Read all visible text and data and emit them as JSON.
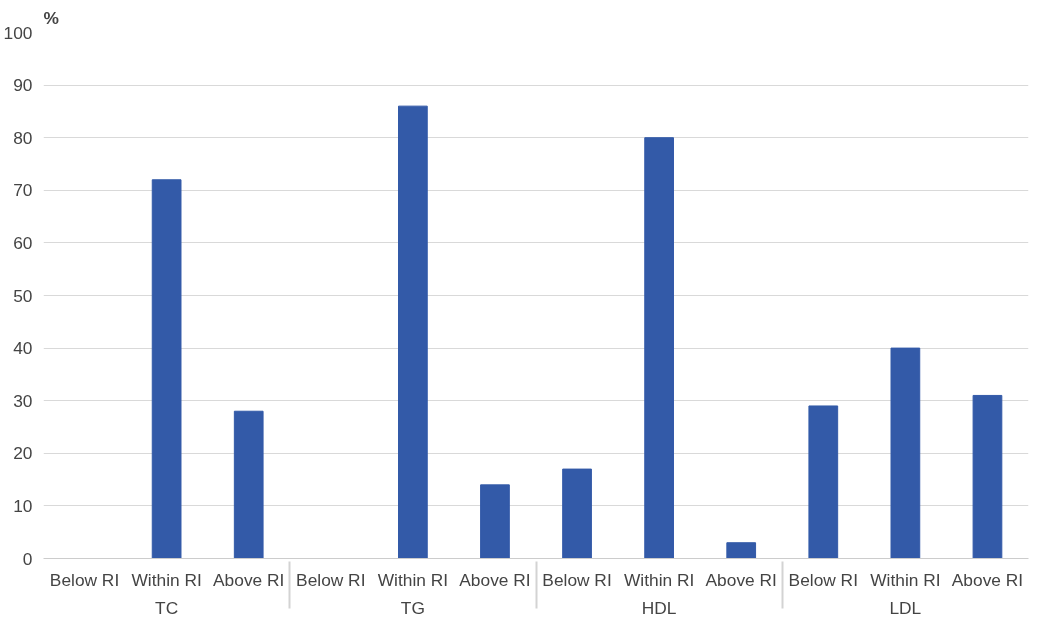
{
  "chart_data": {
    "type": "bar",
    "ylabel": "%",
    "categories": [
      "Below RI",
      "Within RI",
      "Above RI",
      "Below RI",
      "Within RI",
      "Above RI",
      "Below RI",
      "Within RI",
      "Above RI",
      "Below RI",
      "Within RI",
      "Above RI"
    ],
    "annotations": [
      "TC",
      "TG",
      "HDL",
      "LDL"
    ],
    "values": [
      0,
      72,
      28,
      0,
      86,
      14,
      17,
      80,
      3,
      29,
      40,
      31
    ],
    "color": "#335aa8",
    "ylim": [
      0,
      100
    ],
    "yticks": [
      0,
      10,
      20,
      30,
      40,
      50,
      60,
      70,
      80,
      90,
      100
    ],
    "grid": "y"
  }
}
